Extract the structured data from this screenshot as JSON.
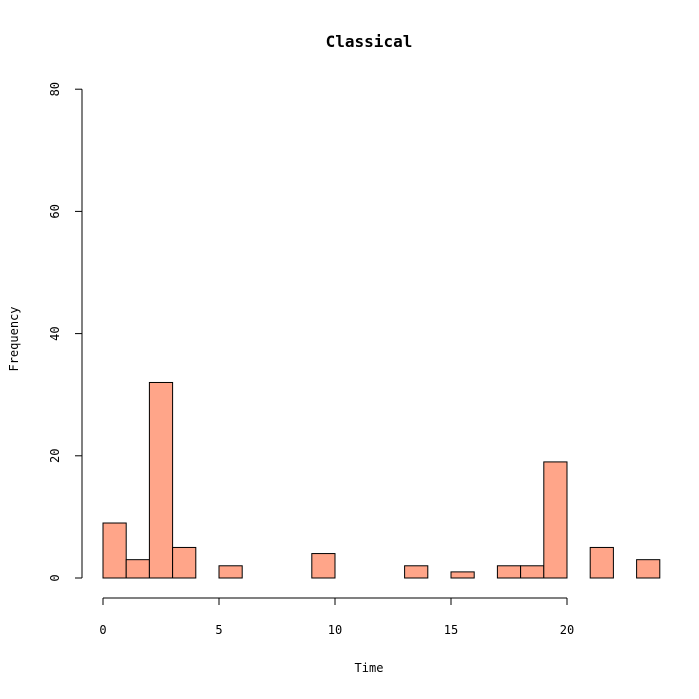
{
  "chart_data": {
    "type": "bar",
    "title": "Classical",
    "xlabel": "Time",
    "ylabel": "Frequency",
    "bin_width": 1,
    "x_ticks": [
      0,
      5,
      10,
      15,
      20
    ],
    "y_ticks": [
      0,
      20,
      40,
      60,
      80
    ],
    "xlim": [
      0,
      24
    ],
    "ylim": [
      0,
      80
    ],
    "bins": [
      {
        "start": 0,
        "end": 1,
        "count": 9
      },
      {
        "start": 1,
        "end": 2,
        "count": 3
      },
      {
        "start": 2,
        "end": 3,
        "count": 32
      },
      {
        "start": 3,
        "end": 4,
        "count": 5
      },
      {
        "start": 4,
        "end": 5,
        "count": 0
      },
      {
        "start": 5,
        "end": 6,
        "count": 2
      },
      {
        "start": 6,
        "end": 7,
        "count": 0
      },
      {
        "start": 7,
        "end": 8,
        "count": 0
      },
      {
        "start": 8,
        "end": 9,
        "count": 0
      },
      {
        "start": 9,
        "end": 10,
        "count": 4
      },
      {
        "start": 10,
        "end": 11,
        "count": 0
      },
      {
        "start": 11,
        "end": 12,
        "count": 0
      },
      {
        "start": 12,
        "end": 13,
        "count": 0
      },
      {
        "start": 13,
        "end": 14,
        "count": 2
      },
      {
        "start": 14,
        "end": 15,
        "count": 0
      },
      {
        "start": 15,
        "end": 16,
        "count": 1
      },
      {
        "start": 16,
        "end": 17,
        "count": 0
      },
      {
        "start": 17,
        "end": 18,
        "count": 2
      },
      {
        "start": 18,
        "end": 19,
        "count": 2
      },
      {
        "start": 19,
        "end": 20,
        "count": 19
      },
      {
        "start": 20,
        "end": 21,
        "count": 0
      },
      {
        "start": 21,
        "end": 22,
        "count": 5
      },
      {
        "start": 22,
        "end": 23,
        "count": 0
      },
      {
        "start": 23,
        "end": 24,
        "count": 3
      }
    ],
    "grid": false,
    "bar_fill_color": "#FFA589",
    "bar_stroke_color": "#000000"
  }
}
